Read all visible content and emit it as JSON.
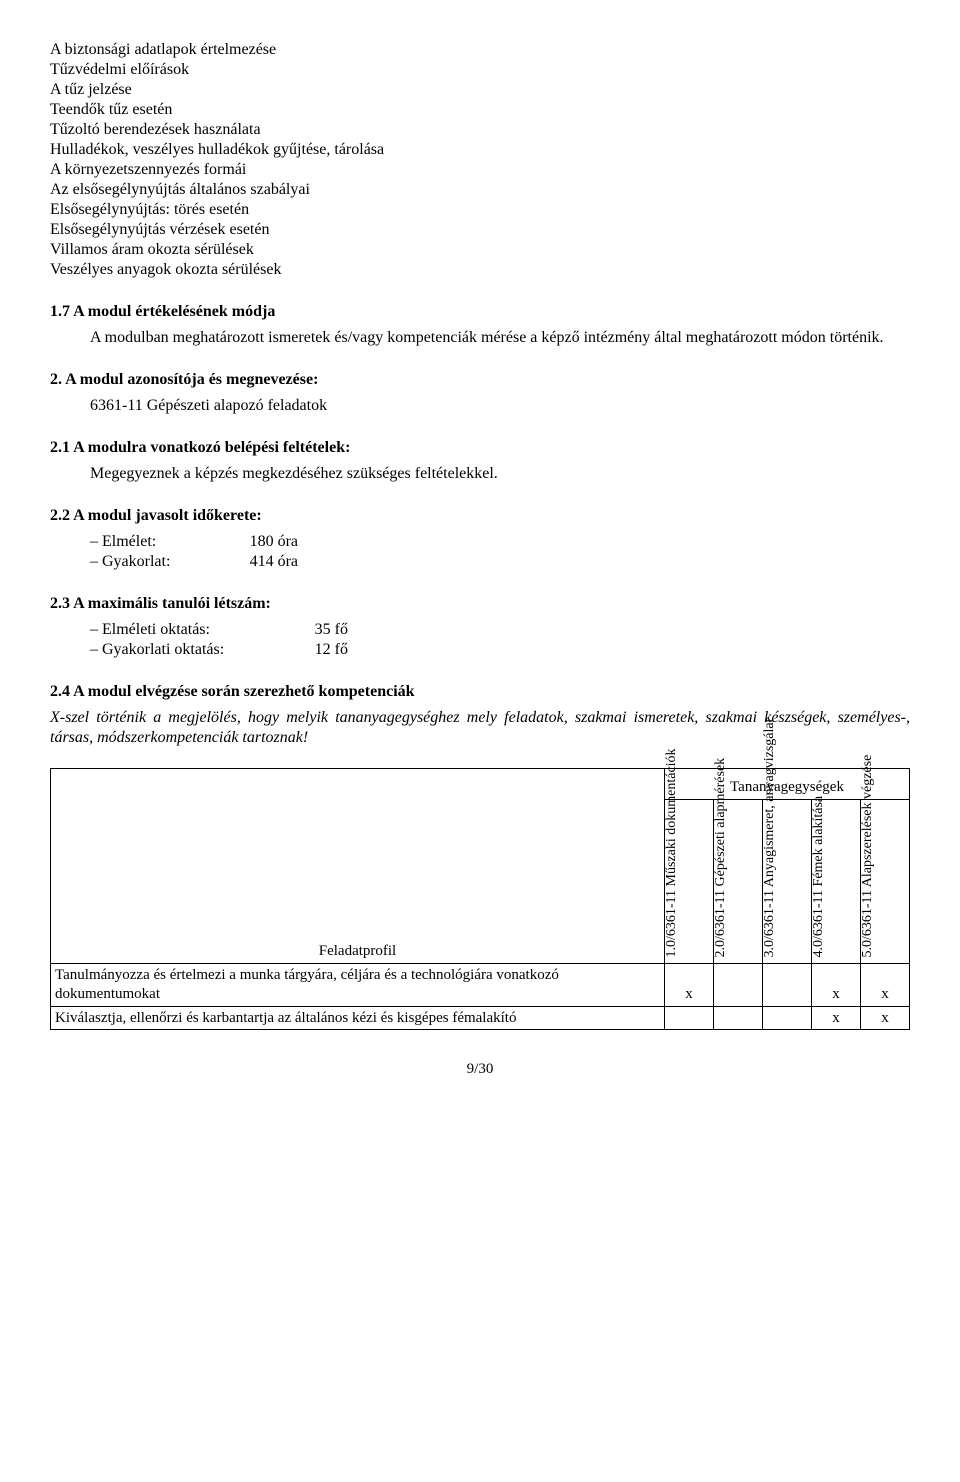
{
  "intro_lines": [
    "A biztonsági adatlapok értelmezése",
    "Tűzvédelmi előírások",
    "A tűz jelzése",
    "Teendők tűz esetén",
    "Tűzoltó berendezések használata",
    "Hulladékok, veszélyes hulladékok gyűjtése, tárolása",
    "A környezetszennyezés formái",
    "Az elsősegélynyújtás általános szabályai",
    "Elsősegélynyújtás: törés esetén",
    "Elsősegélynyújtás vérzések esetén",
    "Villamos áram okozta sérülések",
    "Veszélyes anyagok okozta sérülések"
  ],
  "s17": {
    "title": "1.7   A modul értékelésének módja",
    "body": "A modulban meghatározott ismeretek és/vagy kompetenciák mérése a képző intézmény által meghatározott módon történik."
  },
  "s2": {
    "title": "2.     A modul azonosítója és megnevezése:",
    "body": "6361-11 Gépészeti alapozó feladatok"
  },
  "s21": {
    "title": "2.1   A modulra vonatkozó belépési feltételek:",
    "body": "Megegyeznek a képzés megkezdéséhez szükséges feltételekkel."
  },
  "s22": {
    "title": "2.2   A modul javasolt időkerete:",
    "rows": [
      {
        "label": "– Elmélet:",
        "value": "180 óra"
      },
      {
        "label": "– Gyakorlat:",
        "value": "414 óra"
      }
    ]
  },
  "s23": {
    "title": "2.3   A maximális tanulói létszám:",
    "rows": [
      {
        "label": "– Elméleti oktatás:",
        "value": "35 fő"
      },
      {
        "label": "– Gyakorlati oktatás:",
        "value": "12 fő"
      }
    ]
  },
  "s24": {
    "title": "2.4   A modul elvégzése során szerezhető kompetenciák",
    "body": "X-szel történik a megjelölés, hogy melyik tananyagegységhez mely feladatok, szakmai ismeretek, szakmai készségek, személyes-, társas, módszerkompetenciák tartoznak!"
  },
  "table": {
    "tan_header": "Tananyagegységek",
    "feladat_header": "Feladatprofil",
    "columns": [
      "1.0/6361-11 Műszaki dokumentációk",
      "2.0/6361-11 Gépészeti alapmérések",
      "3.0/6361-11 Anyagismeret, anyagvizsgálat",
      "4.0/6361-11 Fémek alakítása",
      "5.0/6361-11 Alapszerelések végzése"
    ],
    "rows": [
      {
        "label": "Tanulmányozza és értelmezi a munka tárgyára, céljára és a technológiára vonatkozó dokumentumokat",
        "cells": [
          "x",
          "",
          "",
          "x",
          "x"
        ]
      },
      {
        "label": "Kiválasztja, ellenőrzi és karbantartja az általános kézi és kisgépes fémalakító",
        "cells": [
          "",
          "",
          "",
          "x",
          "x"
        ]
      }
    ]
  },
  "page_num": "9/30"
}
